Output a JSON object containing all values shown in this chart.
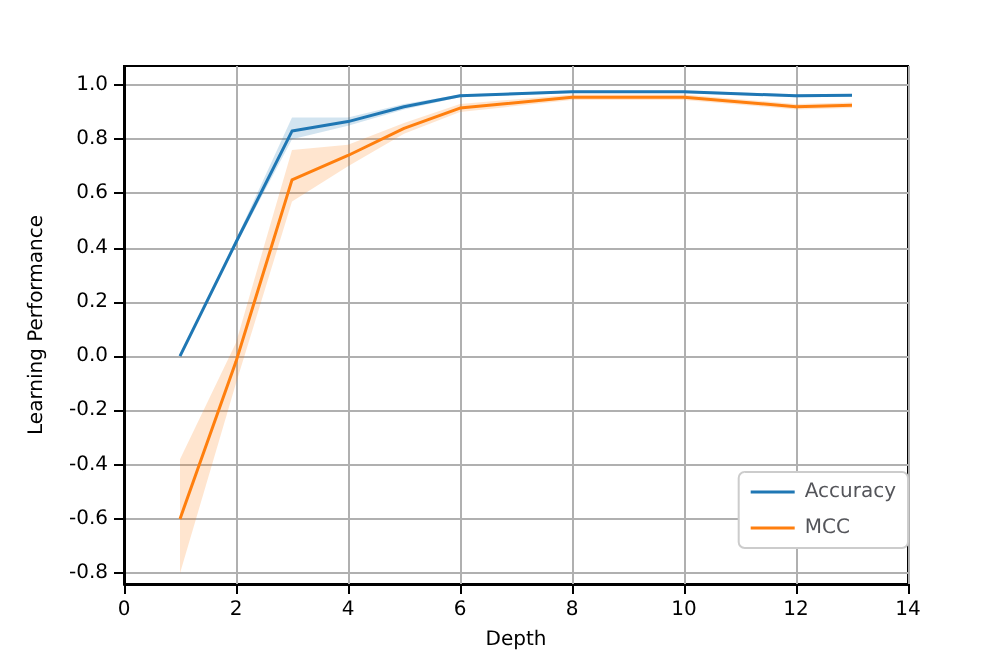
{
  "chart_data": {
    "type": "line",
    "xlabel": "Depth",
    "ylabel": "Learning Performance",
    "x": [
      1,
      2,
      3,
      4,
      5,
      6,
      8,
      10,
      12,
      13
    ],
    "series": [
      {
        "name": "Accuracy",
        "color": "#1f77b4",
        "values": [
          0,
          0.42,
          0.83,
          0.865,
          0.92,
          0.96,
          0.975,
          0.975,
          0.96,
          0.962
        ],
        "lower": [
          0,
          0.41,
          0.8,
          0.85,
          0.91,
          0.955,
          0.97,
          0.97,
          0.955,
          0.957
        ],
        "upper": [
          0,
          0.43,
          0.88,
          0.88,
          0.93,
          0.965,
          0.98,
          0.98,
          0.965,
          0.967
        ]
      },
      {
        "name": "MCC",
        "color": "#ff7f0e",
        "values": [
          -0.6,
          -0.02,
          0.65,
          0.74,
          0.84,
          0.915,
          0.955,
          0.955,
          0.92,
          0.925
        ],
        "lower": [
          -0.8,
          -0.1,
          0.57,
          0.7,
          0.82,
          0.9,
          0.945,
          0.945,
          0.91,
          0.915
        ],
        "upper": [
          -0.38,
          0.05,
          0.76,
          0.78,
          0.86,
          0.93,
          0.965,
          0.965,
          0.93,
          0.935
        ]
      }
    ],
    "xlim": [
      0,
      14
    ],
    "xticks": [
      0,
      2,
      4,
      6,
      8,
      10,
      12,
      14
    ],
    "ylim": [
      -0.84,
      1.07
    ],
    "yticks": [
      -0.8,
      -0.6,
      -0.4,
      -0.2,
      {
        "value": 0,
        "label": "0.0"
      },
      0.2,
      0.4,
      0.6,
      0.8,
      {
        "value": 1,
        "label": "1.0"
      }
    ],
    "grid": true,
    "legend": "bottom right",
    "marker": "none",
    "line_style": "solid"
  }
}
